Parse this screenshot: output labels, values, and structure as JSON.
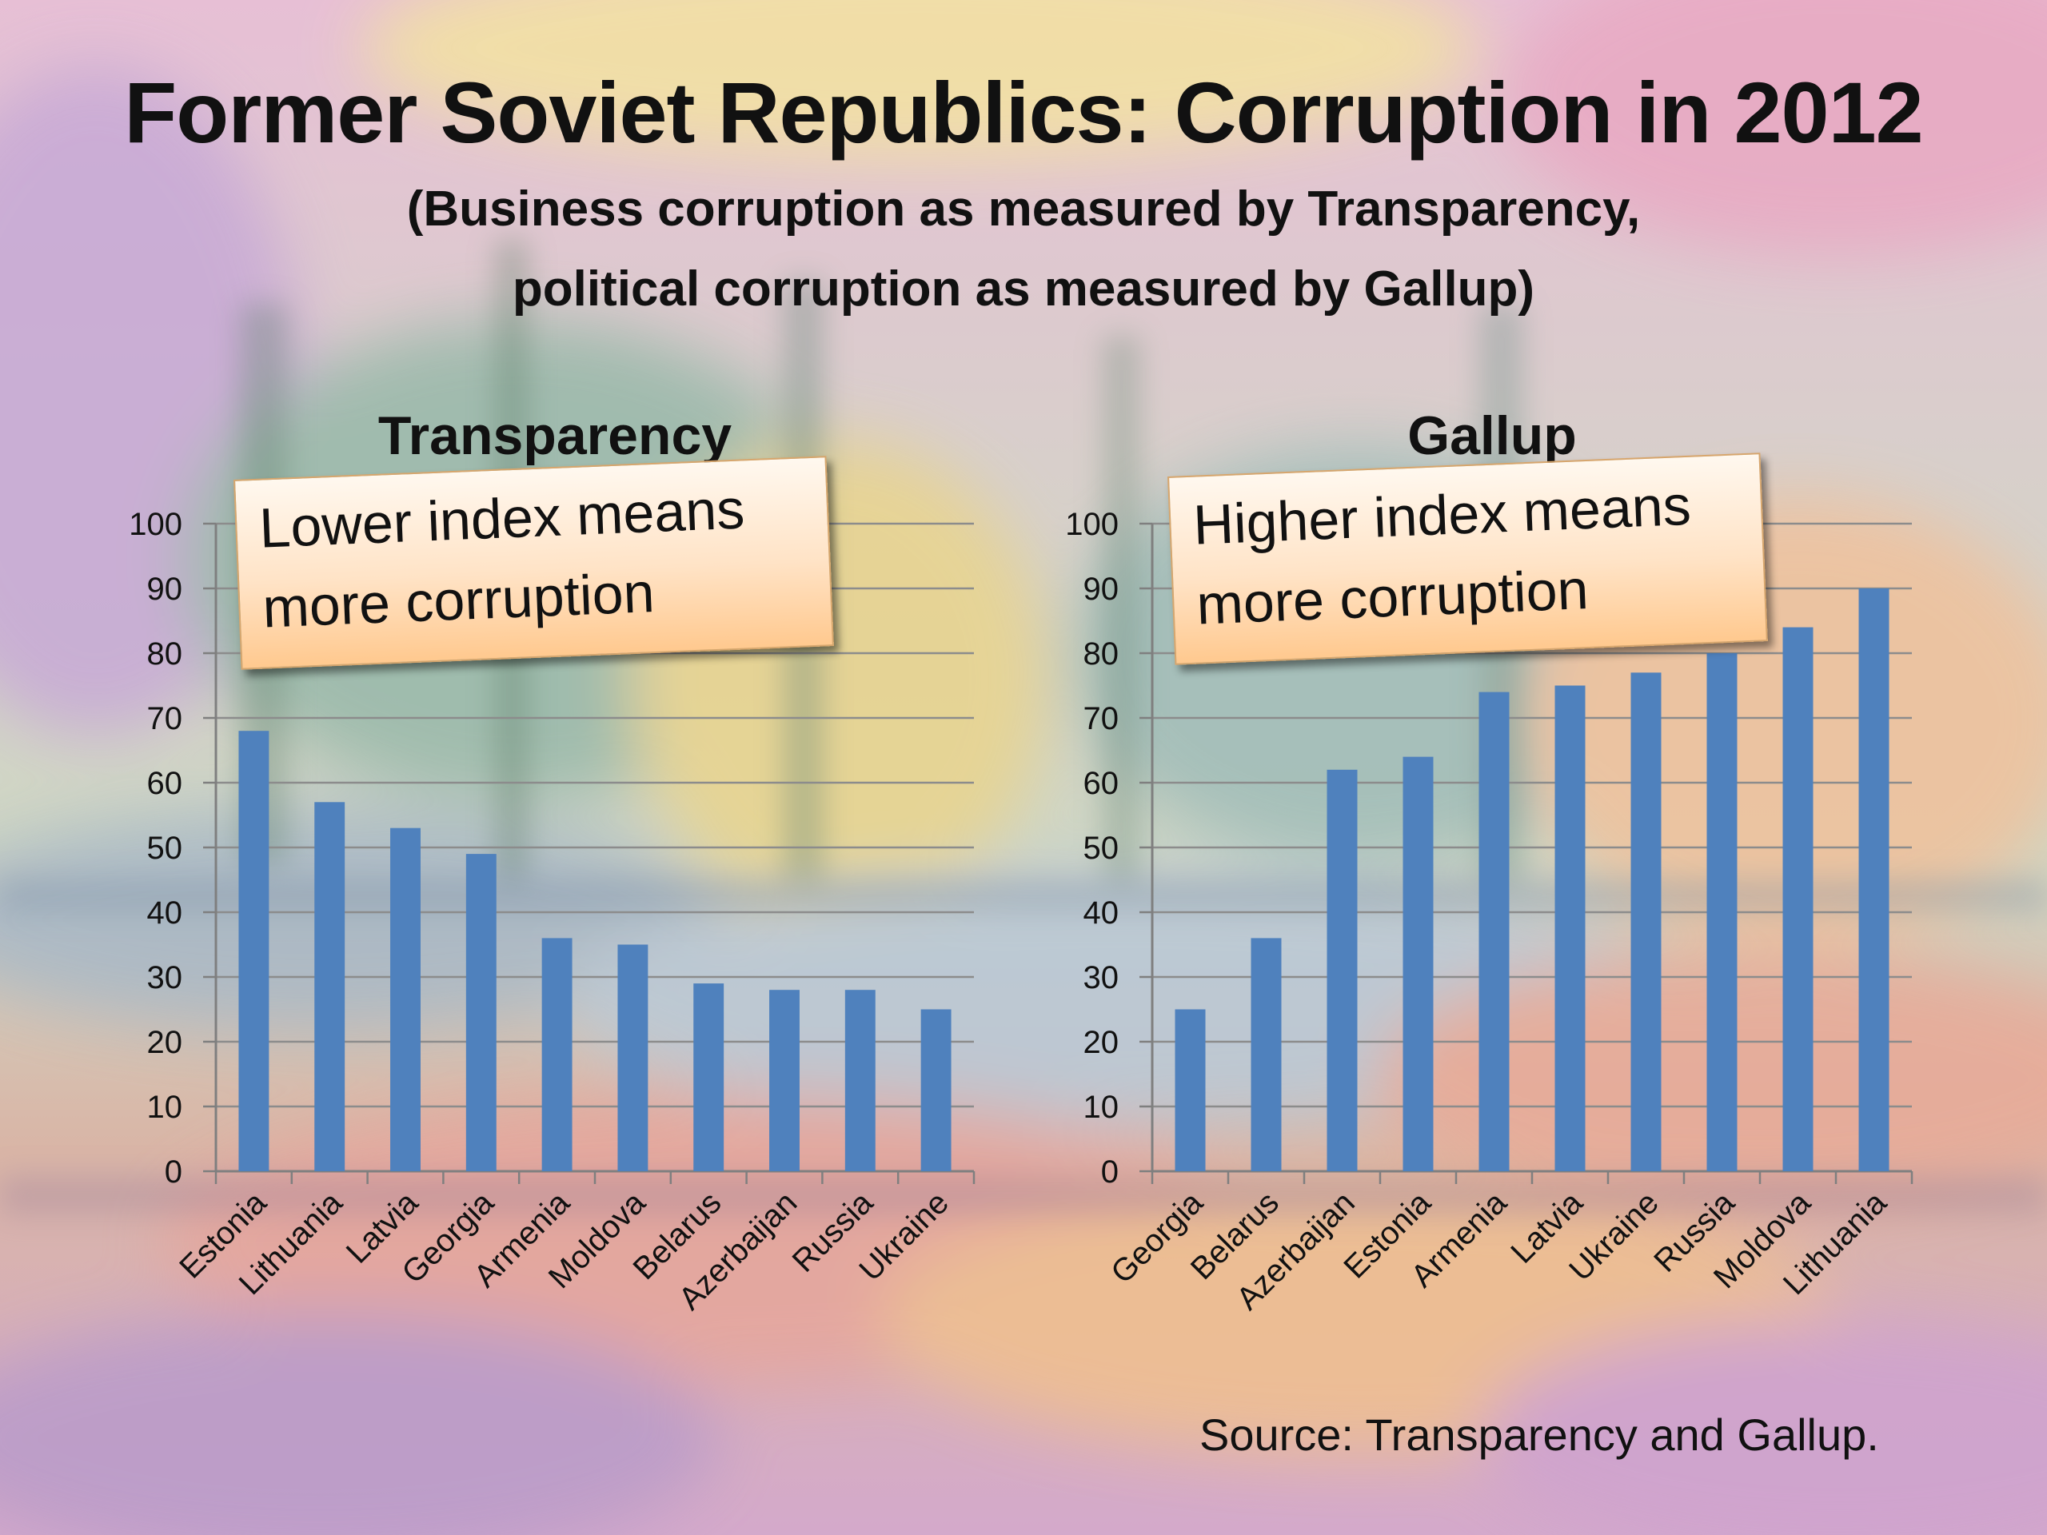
{
  "title": "Former Soviet Republics: Corruption in 2012",
  "subtitle_lines": [
    "(Business corruption as measured by Transparency,",
    "political corruption as measured by Gallup)"
  ],
  "source": "Source: Transparency and Gallup.",
  "colors": {
    "bar": "#4f81bd",
    "gridline": "#8c8c8c",
    "axis": "#7f7f7f"
  },
  "chart_data": [
    {
      "type": "bar",
      "title": "Transparency",
      "categories": [
        "Estonia",
        "Lithuania",
        "Latvia",
        "Georgia",
        "Armenia",
        "Moldova",
        "Belarus",
        "Azerbaijan",
        "Russia",
        "Ukraine"
      ],
      "values": [
        68,
        57,
        53,
        49,
        36,
        35,
        29,
        28,
        28,
        25
      ],
      "ylim": [
        0,
        100
      ],
      "yticks": [
        0,
        10,
        20,
        30,
        40,
        50,
        60,
        70,
        80,
        90,
        100
      ],
      "grid": true,
      "annotation": [
        "Lower index means",
        "more corruption"
      ]
    },
    {
      "type": "bar",
      "title": "Gallup",
      "categories": [
        "Georgia",
        "Belarus",
        "Azerbaijan",
        "Estonia",
        "Armenia",
        "Latvia",
        "Ukraine",
        "Russia",
        "Moldova",
        "Lithuania"
      ],
      "values": [
        25,
        36,
        62,
        64,
        74,
        75,
        77,
        80,
        84,
        90
      ],
      "ylim": [
        0,
        100
      ],
      "yticks": [
        0,
        10,
        20,
        30,
        40,
        50,
        60,
        70,
        80,
        90,
        100
      ],
      "grid": true,
      "annotation": [
        "Higher index means",
        "more corruption"
      ]
    }
  ]
}
